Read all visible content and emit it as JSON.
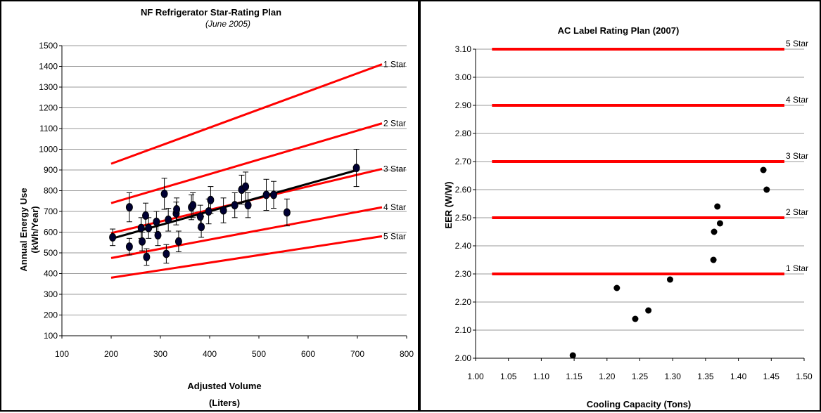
{
  "chart_data": [
    {
      "type": "scatter",
      "title": "NF Refrigerator Star-Rating Plan",
      "subtitle": "(June 2005)",
      "xlabel": "Adjusted Volume",
      "xlabel_unit": "(Liters)",
      "ylabel": "Annual Energy Use",
      "ylabel_unit": "(kWh/Year)",
      "xlim": [
        100,
        800
      ],
      "ylim": [
        100,
        1500
      ],
      "x_ticks": [
        "100",
        "200",
        "300",
        "400",
        "500",
        "600",
        "700",
        "800"
      ],
      "y_ticks": [
        "100",
        "200",
        "300",
        "400",
        "500",
        "600",
        "700",
        "800",
        "900",
        "1000",
        "1100",
        "1200",
        "1300",
        "1400",
        "1500"
      ],
      "grid": "horizontal",
      "rating_lines": [
        {
          "name": "1 Star",
          "x": [
            200,
            750
          ],
          "y": [
            930,
            1410
          ],
          "color": "#ff0000"
        },
        {
          "name": "2 Star",
          "x": [
            200,
            750
          ],
          "y": [
            740,
            1125
          ],
          "color": "#ff0000"
        },
        {
          "name": "3 Star",
          "x": [
            200,
            750
          ],
          "y": [
            595,
            905
          ],
          "color": "#ff0000"
        },
        {
          "name": "4 Star",
          "x": [
            200,
            750
          ],
          "y": [
            475,
            720
          ],
          "color": "#ff0000"
        },
        {
          "name": "5 Star",
          "x": [
            200,
            750
          ],
          "y": [
            380,
            580
          ],
          "color": "#ff0000"
        }
      ],
      "trend_line": {
        "x": [
          200,
          700
        ],
        "y": [
          568,
          900
        ],
        "color": "#000000"
      },
      "points": [
        {
          "x": 203,
          "y": 575,
          "err": 40
        },
        {
          "x": 237,
          "y": 720,
          "err": 70
        },
        {
          "x": 237,
          "y": 530,
          "err": 40
        },
        {
          "x": 261,
          "y": 620,
          "err": 50
        },
        {
          "x": 263,
          "y": 555,
          "err": 45
        },
        {
          "x": 270,
          "y": 680,
          "err": 60
        },
        {
          "x": 272,
          "y": 480,
          "err": 40
        },
        {
          "x": 276,
          "y": 620,
          "err": 50
        },
        {
          "x": 292,
          "y": 650,
          "err": 50
        },
        {
          "x": 295,
          "y": 585,
          "err": 50
        },
        {
          "x": 308,
          "y": 785,
          "err": 75
        },
        {
          "x": 312,
          "y": 495,
          "err": 45
        },
        {
          "x": 316,
          "y": 660,
          "err": 55
        },
        {
          "x": 332,
          "y": 690,
          "err": 55
        },
        {
          "x": 333,
          "y": 710,
          "err": 55
        },
        {
          "x": 337,
          "y": 555,
          "err": 50
        },
        {
          "x": 363,
          "y": 720,
          "err": 60
        },
        {
          "x": 366,
          "y": 730,
          "err": 60
        },
        {
          "x": 381,
          "y": 675,
          "err": 55
        },
        {
          "x": 383,
          "y": 625,
          "err": 50
        },
        {
          "x": 398,
          "y": 700,
          "err": 60
        },
        {
          "x": 402,
          "y": 755,
          "err": 65
        },
        {
          "x": 428,
          "y": 705,
          "err": 60
        },
        {
          "x": 451,
          "y": 730,
          "err": 60
        },
        {
          "x": 465,
          "y": 805,
          "err": 70
        },
        {
          "x": 473,
          "y": 820,
          "err": 70
        },
        {
          "x": 478,
          "y": 730,
          "err": 60
        },
        {
          "x": 515,
          "y": 780,
          "err": 75
        },
        {
          "x": 530,
          "y": 780,
          "err": 65
        },
        {
          "x": 557,
          "y": 695,
          "err": 65
        },
        {
          "x": 698,
          "y": 910,
          "err": 90
        }
      ]
    },
    {
      "type": "scatter",
      "title": "AC Label Rating Plan (2007)",
      "xlabel": "Cooling Capacity (Tons)",
      "ylabel": "EER (W/W)",
      "xlim": [
        1.0,
        1.5
      ],
      "ylim": [
        2.0,
        3.1
      ],
      "x_ticks": [
        "1.00",
        "1.05",
        "1.10",
        "1.15",
        "1.20",
        "1.25",
        "1.30",
        "1.35",
        "1.40",
        "1.45",
        "1.50"
      ],
      "y_ticks": [
        "2.00",
        "2.10",
        "2.20",
        "2.30",
        "2.40",
        "2.50",
        "2.60",
        "2.70",
        "2.80",
        "2.90",
        "3.00",
        "3.10"
      ],
      "grid": "horizontal",
      "rating_lines": [
        {
          "name": "5 Star",
          "y": 3.1,
          "x": [
            1.025,
            1.47
          ],
          "color": "#ff0000"
        },
        {
          "name": "4 Star",
          "y": 2.9,
          "x": [
            1.025,
            1.47
          ],
          "color": "#ff0000"
        },
        {
          "name": "3 Star",
          "y": 2.7,
          "x": [
            1.025,
            1.47
          ],
          "color": "#ff0000"
        },
        {
          "name": "2 Star",
          "y": 2.5,
          "x": [
            1.025,
            1.47
          ],
          "color": "#ff0000"
        },
        {
          "name": "1 Star",
          "y": 2.3,
          "x": [
            1.025,
            1.47
          ],
          "color": "#ff0000"
        }
      ],
      "points": [
        {
          "x": 1.148,
          "y": 2.01
        },
        {
          "x": 1.215,
          "y": 2.25
        },
        {
          "x": 1.243,
          "y": 2.14
        },
        {
          "x": 1.263,
          "y": 2.17
        },
        {
          "x": 1.296,
          "y": 2.28
        },
        {
          "x": 1.362,
          "y": 2.35
        },
        {
          "x": 1.363,
          "y": 2.45
        },
        {
          "x": 1.368,
          "y": 2.54
        },
        {
          "x": 1.372,
          "y": 2.48
        },
        {
          "x": 1.438,
          "y": 2.67
        },
        {
          "x": 1.443,
          "y": 2.6
        }
      ]
    }
  ]
}
